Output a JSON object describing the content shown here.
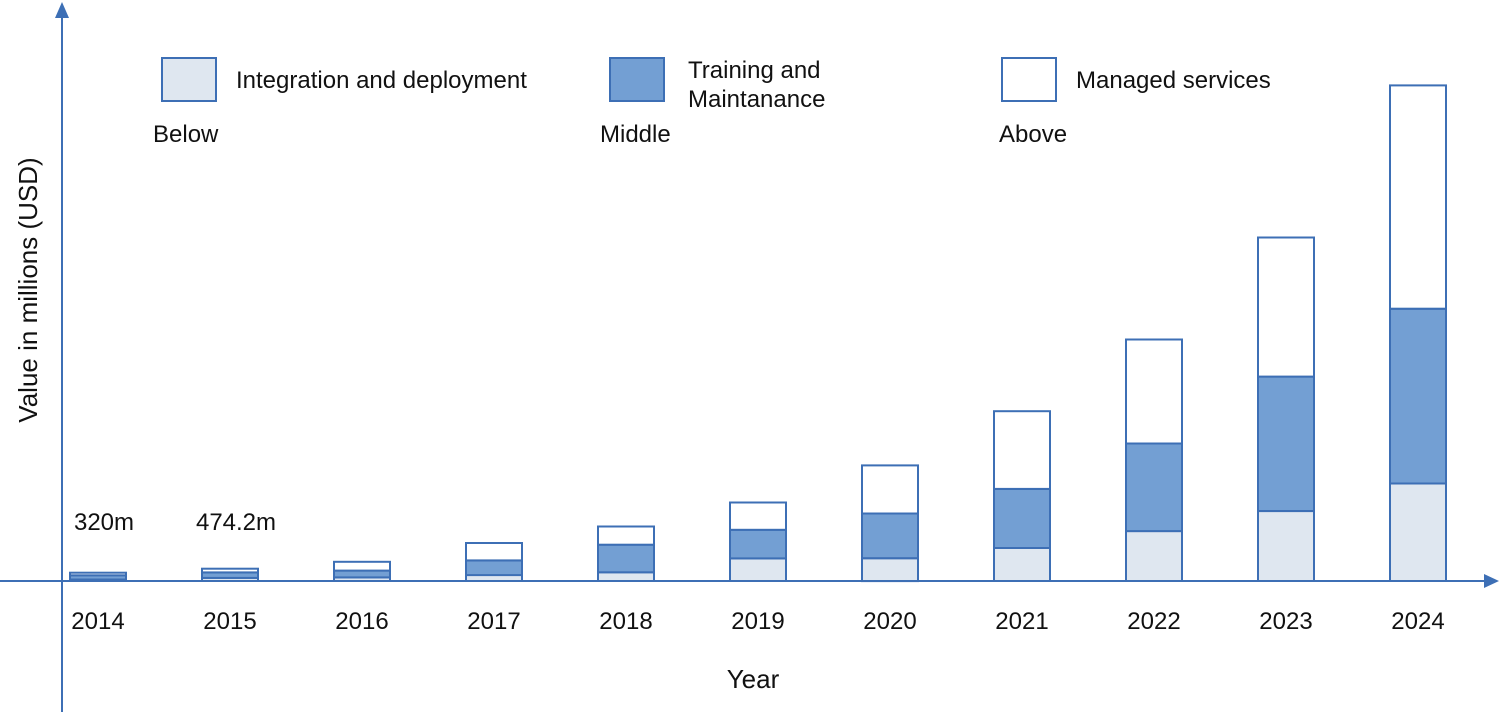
{
  "chart_data": {
    "type": "bar",
    "stacked": true,
    "title": "",
    "xlabel": "Year",
    "ylabel": "Value in millions (USD)",
    "categories": [
      "2014",
      "2015",
      "2016",
      "2017",
      "2018",
      "2019",
      "2020",
      "2021",
      "2022",
      "2023",
      "2024"
    ],
    "series": [
      {
        "name": "Integration and deployment",
        "position": "Below",
        "color": "#dfe7f0",
        "values": [
          60,
          120,
          140,
          230,
          335,
          870,
          875,
          1270,
          1920,
          2690,
          3750
        ]
      },
      {
        "name": "Training and Maintanance",
        "position": "Middle",
        "color": "#739fd3",
        "values": [
          160,
          210,
          260,
          560,
          1060,
          1100,
          1720,
          2270,
          3370,
          5170,
          6720
        ]
      },
      {
        "name": "Managed services",
        "position": "Above",
        "color": "#ffffff",
        "values": [
          100,
          144.2,
          340,
          670,
          700,
          1050,
          1850,
          2990,
          4000,
          5350,
          8590
        ]
      }
    ],
    "totals": [
      320,
      474.2,
      740,
      1460,
      2095,
      3020,
      4445,
      6530,
      9290,
      13210,
      19060
    ],
    "data_labels": [
      {
        "category": "2014",
        "text": "320m"
      },
      {
        "category": "2015",
        "text": "474.2m"
      }
    ],
    "ylim": [
      0,
      21000
    ],
    "y_ticks_shown": false,
    "grid": false,
    "legend_placement": "top",
    "edge_color": "#3d6fb5",
    "axis_color": "#3d6fb5"
  }
}
